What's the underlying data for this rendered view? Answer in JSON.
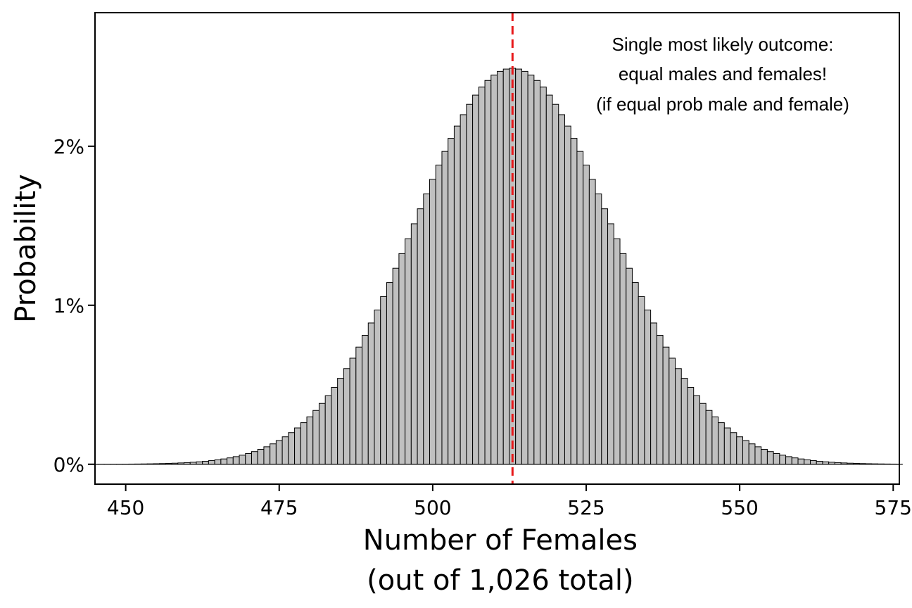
{
  "chart_data": {
    "type": "bar",
    "n_total": 1026,
    "p": 0.5,
    "x_range": [
      445,
      576
    ],
    "ylim": [
      -0.00125,
      0.0284
    ],
    "xlim": [
      445,
      576
    ],
    "bar_color": "#c0c0c0",
    "bar_edge_color": "#000000",
    "reference_line": {
      "x": 513,
      "color": "#e8191b",
      "style": "dashed"
    },
    "x_ticks": [
      450,
      475,
      500,
      525,
      550,
      575
    ],
    "x_tick_labels": [
      "450",
      "475",
      "500",
      "525",
      "550",
      "575"
    ],
    "y_ticks": [
      0,
      0.01,
      0.02
    ],
    "y_tick_labels": [
      "0%",
      "1%",
      "2%"
    ],
    "xlabel": "Number of Females",
    "xlabel_sub": "(out of 1,026 total)",
    "ylabel": "Probability",
    "annotation": [
      "Single most likely outcome:",
      "equal males and females!",
      "(if equal prob male and female)"
    ]
  }
}
